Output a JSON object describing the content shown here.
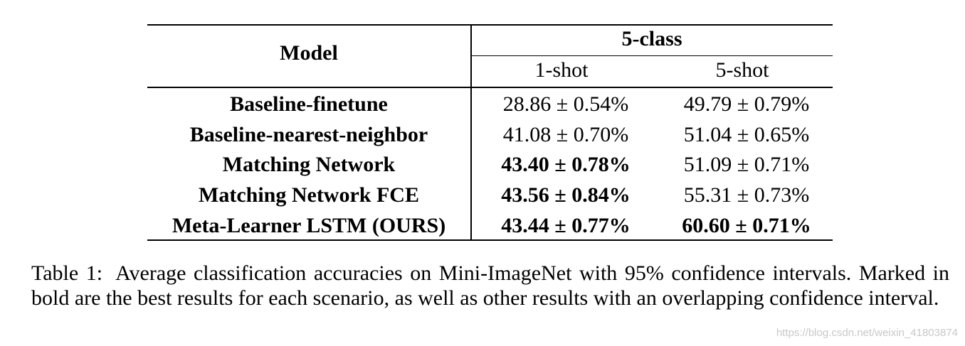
{
  "table": {
    "header": {
      "model_label": "Model",
      "group_label": "5-class",
      "sub_labels": [
        "1-shot",
        "5-shot"
      ]
    },
    "rows": [
      {
        "model": "Baseline-finetune",
        "one_shot": "28.86 ± 0.54%",
        "five_shot": "49.79 ± 0.79%",
        "one_shot_bold": false,
        "five_shot_bold": false
      },
      {
        "model": "Baseline-nearest-neighbor",
        "one_shot": "41.08 ± 0.70%",
        "five_shot": "51.04 ± 0.65%",
        "one_shot_bold": false,
        "five_shot_bold": false
      },
      {
        "model": "Matching Network",
        "one_shot": "43.40 ± 0.78%",
        "five_shot": "51.09 ± 0.71%",
        "one_shot_bold": true,
        "five_shot_bold": false
      },
      {
        "model": "Matching Network FCE",
        "one_shot": "43.56 ± 0.84%",
        "five_shot": "55.31 ± 0.73%",
        "one_shot_bold": true,
        "five_shot_bold": false
      },
      {
        "model": "Meta-Learner LSTM (OURS)",
        "one_shot": "43.44 ± 0.77%",
        "five_shot": "60.60 ± 0.71%",
        "one_shot_bold": true,
        "five_shot_bold": true
      }
    ]
  },
  "caption": {
    "label": "Table 1:",
    "text": "Average classification accuracies on Mini-ImageNet with 95% confidence intervals. Marked in bold are the best results for each scenario, as well as other results with an overlapping confidence interval."
  },
  "watermark": "https://blog.csdn.net/weixin_41803874"
}
